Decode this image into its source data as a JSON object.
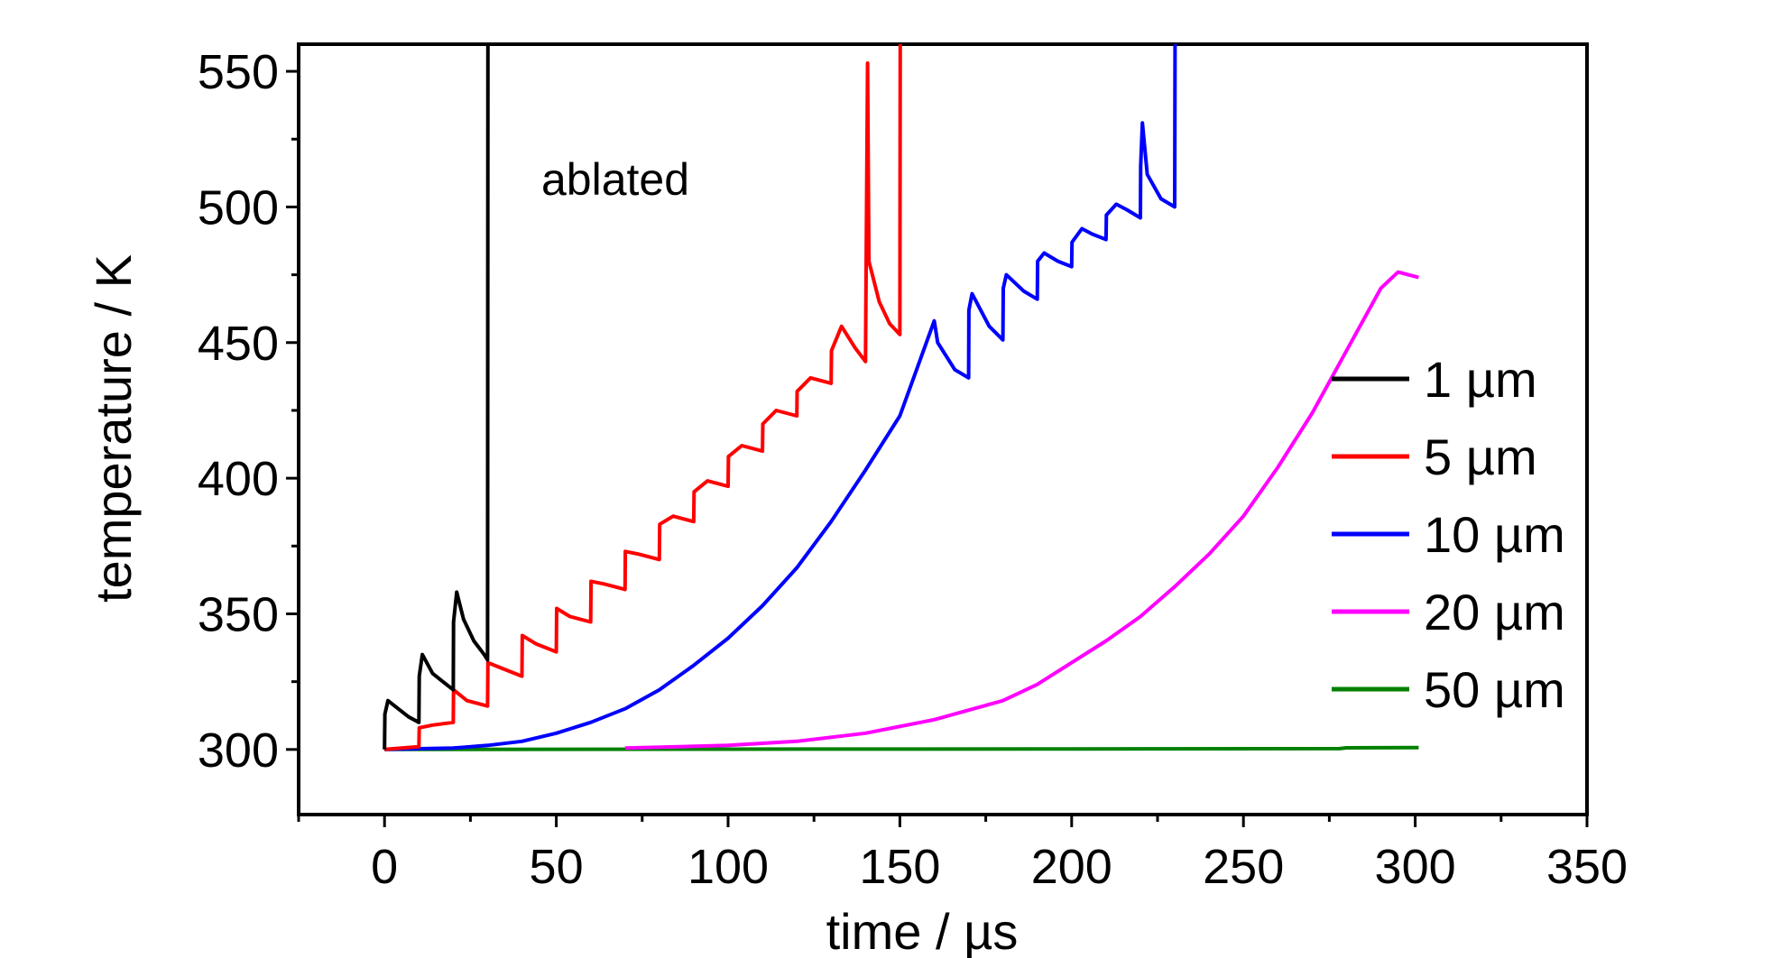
{
  "chart_data": {
    "type": "line",
    "title": "",
    "xlabel": "time / µs",
    "ylabel": "temperature / K",
    "xlim": [
      -25,
      350
    ],
    "ylim": [
      276,
      560
    ],
    "xticks": [
      "0",
      "50",
      "100",
      "150",
      "200",
      "250",
      "300",
      "350"
    ],
    "yticks": [
      "300",
      "350",
      "400",
      "450",
      "500",
      "550"
    ],
    "annotation": "ablated",
    "legend_position": "right",
    "series": [
      {
        "name": "1 µm",
        "color": "#000000",
        "points": [
          [
            0,
            300
          ],
          [
            0.1,
            313
          ],
          [
            1,
            318
          ],
          [
            4,
            315
          ],
          [
            7,
            312
          ],
          [
            10,
            310
          ],
          [
            10.1,
            327
          ],
          [
            11,
            335
          ],
          [
            14,
            328
          ],
          [
            17,
            325
          ],
          [
            20,
            322
          ],
          [
            20.1,
            347
          ],
          [
            21,
            358
          ],
          [
            23,
            348
          ],
          [
            26,
            340
          ],
          [
            29,
            335
          ],
          [
            30,
            333
          ],
          [
            30.1,
            560
          ]
        ]
      },
      {
        "name": "5 µm",
        "color": "#ff0000",
        "points": [
          [
            0,
            300
          ],
          [
            10,
            301
          ],
          [
            10.1,
            308
          ],
          [
            14,
            309
          ],
          [
            20,
            310
          ],
          [
            20.1,
            322
          ],
          [
            24,
            318
          ],
          [
            30,
            316
          ],
          [
            30.1,
            332
          ],
          [
            34,
            330
          ],
          [
            40,
            327
          ],
          [
            40.1,
            342
          ],
          [
            44,
            339
          ],
          [
            50,
            336
          ],
          [
            50.1,
            352
          ],
          [
            54,
            349
          ],
          [
            60,
            347
          ],
          [
            60.1,
            362
          ],
          [
            64,
            361
          ],
          [
            70,
            359
          ],
          [
            70.1,
            373
          ],
          [
            74,
            372
          ],
          [
            80,
            370
          ],
          [
            80.1,
            383
          ],
          [
            84,
            386
          ],
          [
            90,
            384
          ],
          [
            90.1,
            395
          ],
          [
            94,
            399
          ],
          [
            100,
            397
          ],
          [
            100.1,
            408
          ],
          [
            104,
            412
          ],
          [
            110,
            410
          ],
          [
            110.1,
            420
          ],
          [
            114,
            425
          ],
          [
            120,
            423
          ],
          [
            120.1,
            432
          ],
          [
            124,
            437
          ],
          [
            130,
            435
          ],
          [
            130.1,
            447
          ],
          [
            133,
            456
          ],
          [
            137,
            448
          ],
          [
            140,
            443
          ],
          [
            140.1,
            463
          ],
          [
            140.6,
            553
          ],
          [
            141,
            480
          ],
          [
            144,
            465
          ],
          [
            147,
            457
          ],
          [
            150,
            453
          ],
          [
            150.1,
            560
          ]
        ]
      },
      {
        "name": "10 µm",
        "color": "#0000ff",
        "points": [
          [
            0,
            300
          ],
          [
            20,
            300.5
          ],
          [
            30,
            301.5
          ],
          [
            40,
            303
          ],
          [
            50,
            306
          ],
          [
            60,
            310
          ],
          [
            70,
            315
          ],
          [
            80,
            322
          ],
          [
            90,
            331
          ],
          [
            100,
            341
          ],
          [
            110,
            353
          ],
          [
            120,
            367
          ],
          [
            130,
            384
          ],
          [
            140,
            403
          ],
          [
            150,
            423
          ],
          [
            160,
            458
          ],
          [
            161,
            450
          ],
          [
            166,
            440
          ],
          [
            170,
            437
          ],
          [
            170.1,
            462
          ],
          [
            171,
            468
          ],
          [
            176,
            456
          ],
          [
            180,
            451
          ],
          [
            180.1,
            470
          ],
          [
            181,
            475
          ],
          [
            186,
            469
          ],
          [
            190,
            466
          ],
          [
            190.1,
            480
          ],
          [
            192,
            483
          ],
          [
            196,
            480
          ],
          [
            200,
            478
          ],
          [
            200.1,
            487
          ],
          [
            203,
            492
          ],
          [
            206,
            490
          ],
          [
            210,
            488
          ],
          [
            210.1,
            497
          ],
          [
            213,
            501
          ],
          [
            216,
            499
          ],
          [
            220,
            496
          ],
          [
            220.1,
            515
          ],
          [
            220.6,
            531
          ],
          [
            222,
            512
          ],
          [
            226,
            503
          ],
          [
            230,
            500
          ],
          [
            230.1,
            560
          ]
        ]
      },
      {
        "name": "20 µm",
        "color": "#ff00ff",
        "points": [
          [
            70,
            300.5
          ],
          [
            100,
            301.5
          ],
          [
            120,
            303
          ],
          [
            140,
            306
          ],
          [
            160,
            311
          ],
          [
            180,
            318
          ],
          [
            190,
            324
          ],
          [
            200,
            332
          ],
          [
            210,
            340
          ],
          [
            220,
            349
          ],
          [
            230,
            360
          ],
          [
            240,
            372
          ],
          [
            250,
            386
          ],
          [
            260,
            404
          ],
          [
            270,
            424
          ],
          [
            280,
            447
          ],
          [
            290,
            470
          ],
          [
            295,
            476
          ],
          [
            301,
            474
          ]
        ]
      },
      {
        "name": "50 µm",
        "color": "#008000",
        "points": [
          [
            0,
            300
          ],
          [
            100,
            300.1
          ],
          [
            200,
            300.2
          ],
          [
            278,
            300.3
          ],
          [
            280,
            300.6
          ],
          [
            301,
            300.7
          ]
        ]
      }
    ]
  }
}
